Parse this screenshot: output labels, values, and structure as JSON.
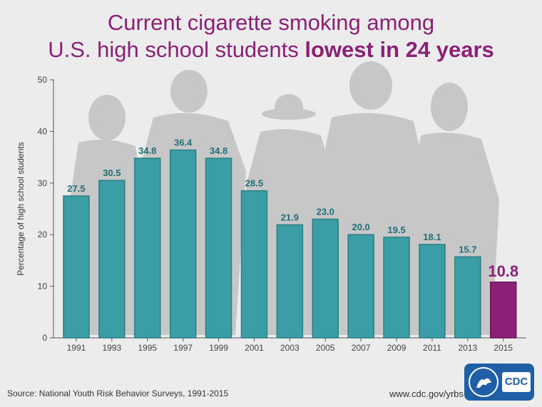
{
  "title": {
    "line1": "Current cigarette smoking among",
    "line2_regular": "U.S. high school students ",
    "line2_bold": "lowest in 24 years"
  },
  "source": "Source: National Youth Risk Behavior Surveys, 1991-2015",
  "url": "www.cdc.gov/yrbs",
  "logo": {
    "cdc_text": "CDC"
  },
  "colors": {
    "bar": "#3b9ea6",
    "bar_stroke": "#2b7f86",
    "highlight": "#8c1f77",
    "label": "#1f6f78",
    "axis": "#555555",
    "silhouette": "#c4c4c4"
  },
  "chart_data": {
    "type": "bar",
    "title": "Current cigarette smoking among U.S. high school students lowest in 24 years",
    "xlabel": "",
    "ylabel": "Percentage of high school students",
    "ylim": [
      0,
      50
    ],
    "yticks": [
      0,
      10,
      20,
      30,
      40,
      50
    ],
    "grid": false,
    "categories": [
      "1991",
      "1993",
      "1995",
      "1997",
      "1999",
      "2001",
      "2003",
      "2005",
      "2007",
      "2009",
      "2011",
      "2013",
      "2015"
    ],
    "values": [
      27.5,
      30.5,
      34.8,
      36.4,
      34.8,
      28.5,
      21.9,
      23.0,
      20.0,
      19.5,
      18.1,
      15.7,
      10.8
    ],
    "value_labels": [
      "27.5",
      "30.5",
      "34.8",
      "36.4",
      "34.8",
      "28.5",
      "21.9",
      "23.0",
      "20.0",
      "19.5",
      "18.1",
      "15.7",
      "10.8"
    ],
    "highlighted_category": "2015"
  }
}
